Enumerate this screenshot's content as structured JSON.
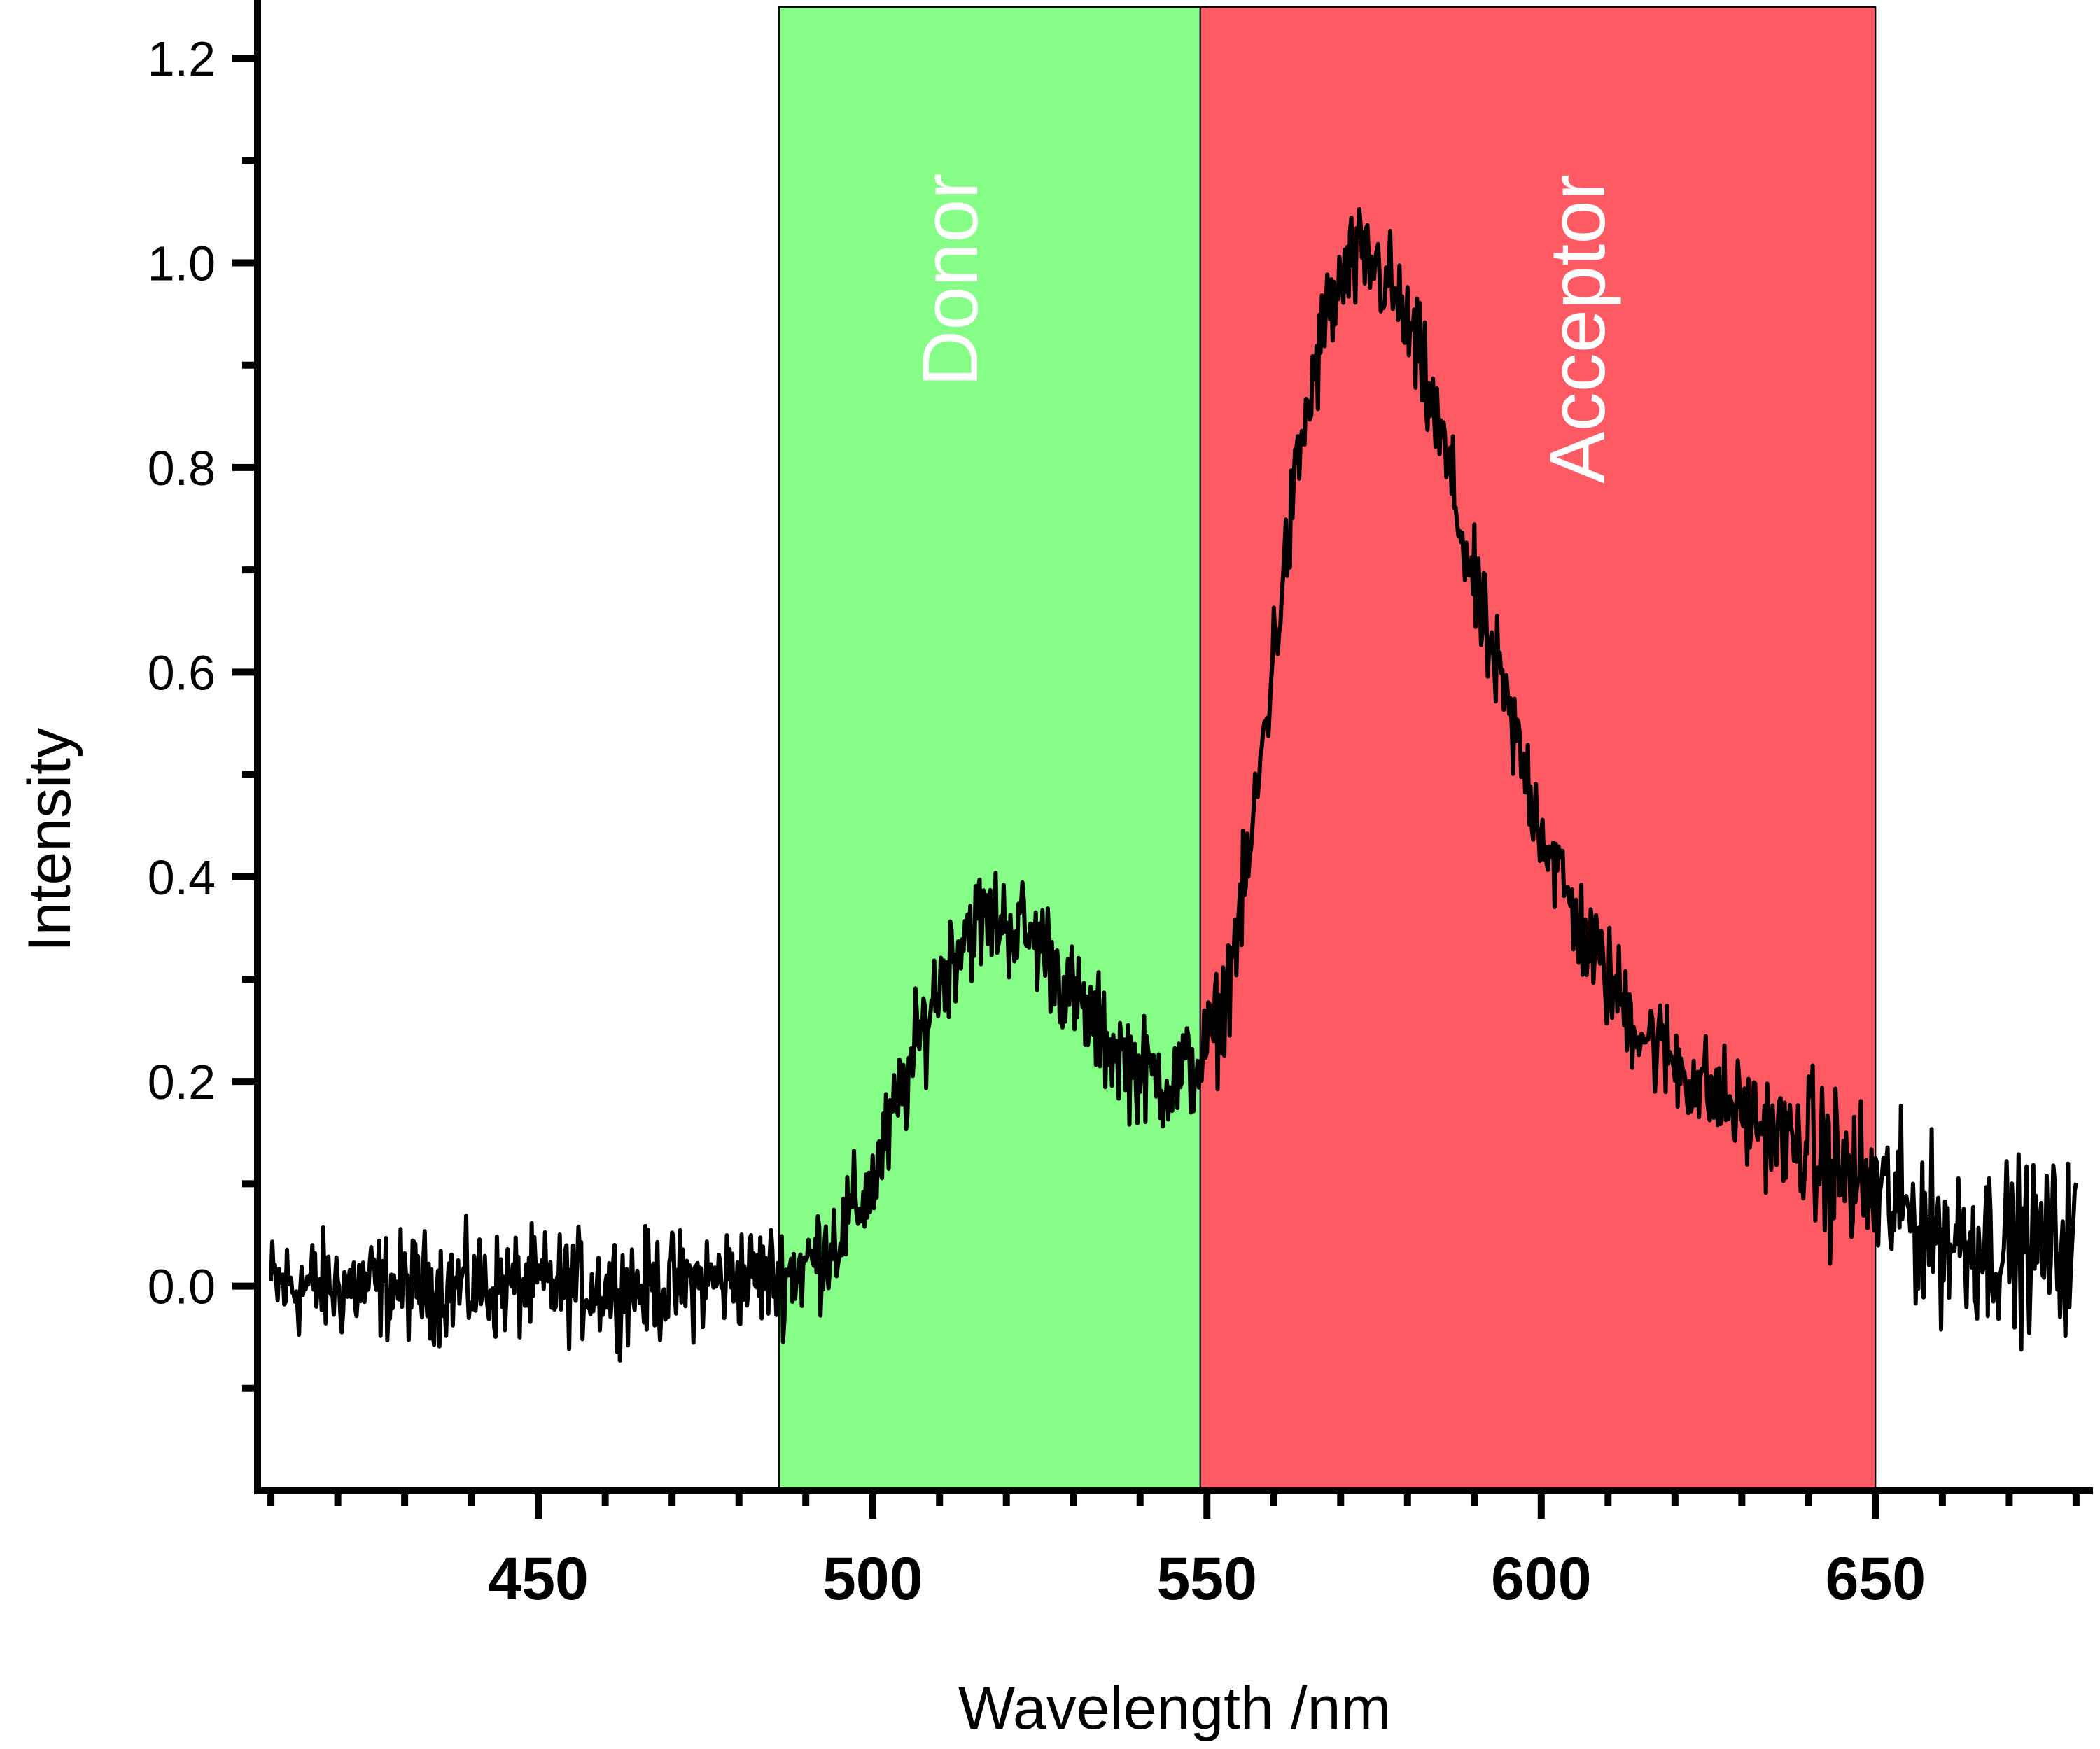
{
  "chart_data": {
    "type": "line",
    "title": "",
    "xlabel": "Wavelength /nm",
    "ylabel": "Intensity",
    "xlim": [
      408,
      682
    ],
    "ylim": [
      -0.2,
      1.25
    ],
    "x_ticks": [
      450,
      500,
      550,
      600,
      650
    ],
    "y_ticks": [
      0.0,
      0.2,
      0.4,
      0.6,
      0.8,
      1.0,
      1.2
    ],
    "x_tick_labels": [
      "450",
      "500",
      "550",
      "600",
      "650"
    ],
    "y_tick_labels": [
      "0.0",
      "0.2",
      "0.4",
      "0.6",
      "0.8",
      "1.0",
      "1.2"
    ],
    "grid": false,
    "legend": "none",
    "bands": [
      {
        "label": "Donor",
        "x_start": 486,
        "x_end": 549,
        "color": "#86fd86"
      },
      {
        "label": "Acceptor",
        "x_start": 549,
        "x_end": 650,
        "color": "#fe5a64"
      }
    ],
    "series": [
      {
        "color": "#000000",
        "noise": "high",
        "points": [
          [
            410,
            0.0
          ],
          [
            430,
            0.0
          ],
          [
            450,
            0.0
          ],
          [
            470,
            0.0
          ],
          [
            480,
            0.01
          ],
          [
            486,
            0.01
          ],
          [
            490,
            0.02
          ],
          [
            495,
            0.05
          ],
          [
            500,
            0.1
          ],
          [
            505,
            0.2
          ],
          [
            510,
            0.3
          ],
          [
            514,
            0.35
          ],
          [
            518,
            0.36
          ],
          [
            522,
            0.35
          ],
          [
            526,
            0.33
          ],
          [
            530,
            0.28
          ],
          [
            535,
            0.24
          ],
          [
            540,
            0.21
          ],
          [
            545,
            0.2
          ],
          [
            549,
            0.22
          ],
          [
            552,
            0.26
          ],
          [
            556,
            0.4
          ],
          [
            560,
            0.62
          ],
          [
            564,
            0.82
          ],
          [
            568,
            0.95
          ],
          [
            572,
            1.0
          ],
          [
            575,
            1.0
          ],
          [
            578,
            0.97
          ],
          [
            582,
            0.9
          ],
          [
            586,
            0.8
          ],
          [
            590,
            0.68
          ],
          [
            595,
            0.56
          ],
          [
            600,
            0.45
          ],
          [
            605,
            0.36
          ],
          [
            610,
            0.3
          ],
          [
            615,
            0.25
          ],
          [
            620,
            0.22
          ],
          [
            625,
            0.19
          ],
          [
            630,
            0.17
          ],
          [
            635,
            0.15
          ],
          [
            640,
            0.13
          ],
          [
            645,
            0.11
          ],
          [
            650,
            0.09
          ],
          [
            655,
            0.07
          ],
          [
            660,
            0.05
          ],
          [
            670,
            0.04
          ],
          [
            680,
            0.04
          ]
        ]
      }
    ]
  },
  "colors": {
    "donor_band": "#86fd86",
    "acceptor_band": "#fe5a64",
    "line": "#000000",
    "axis": "#000000"
  }
}
